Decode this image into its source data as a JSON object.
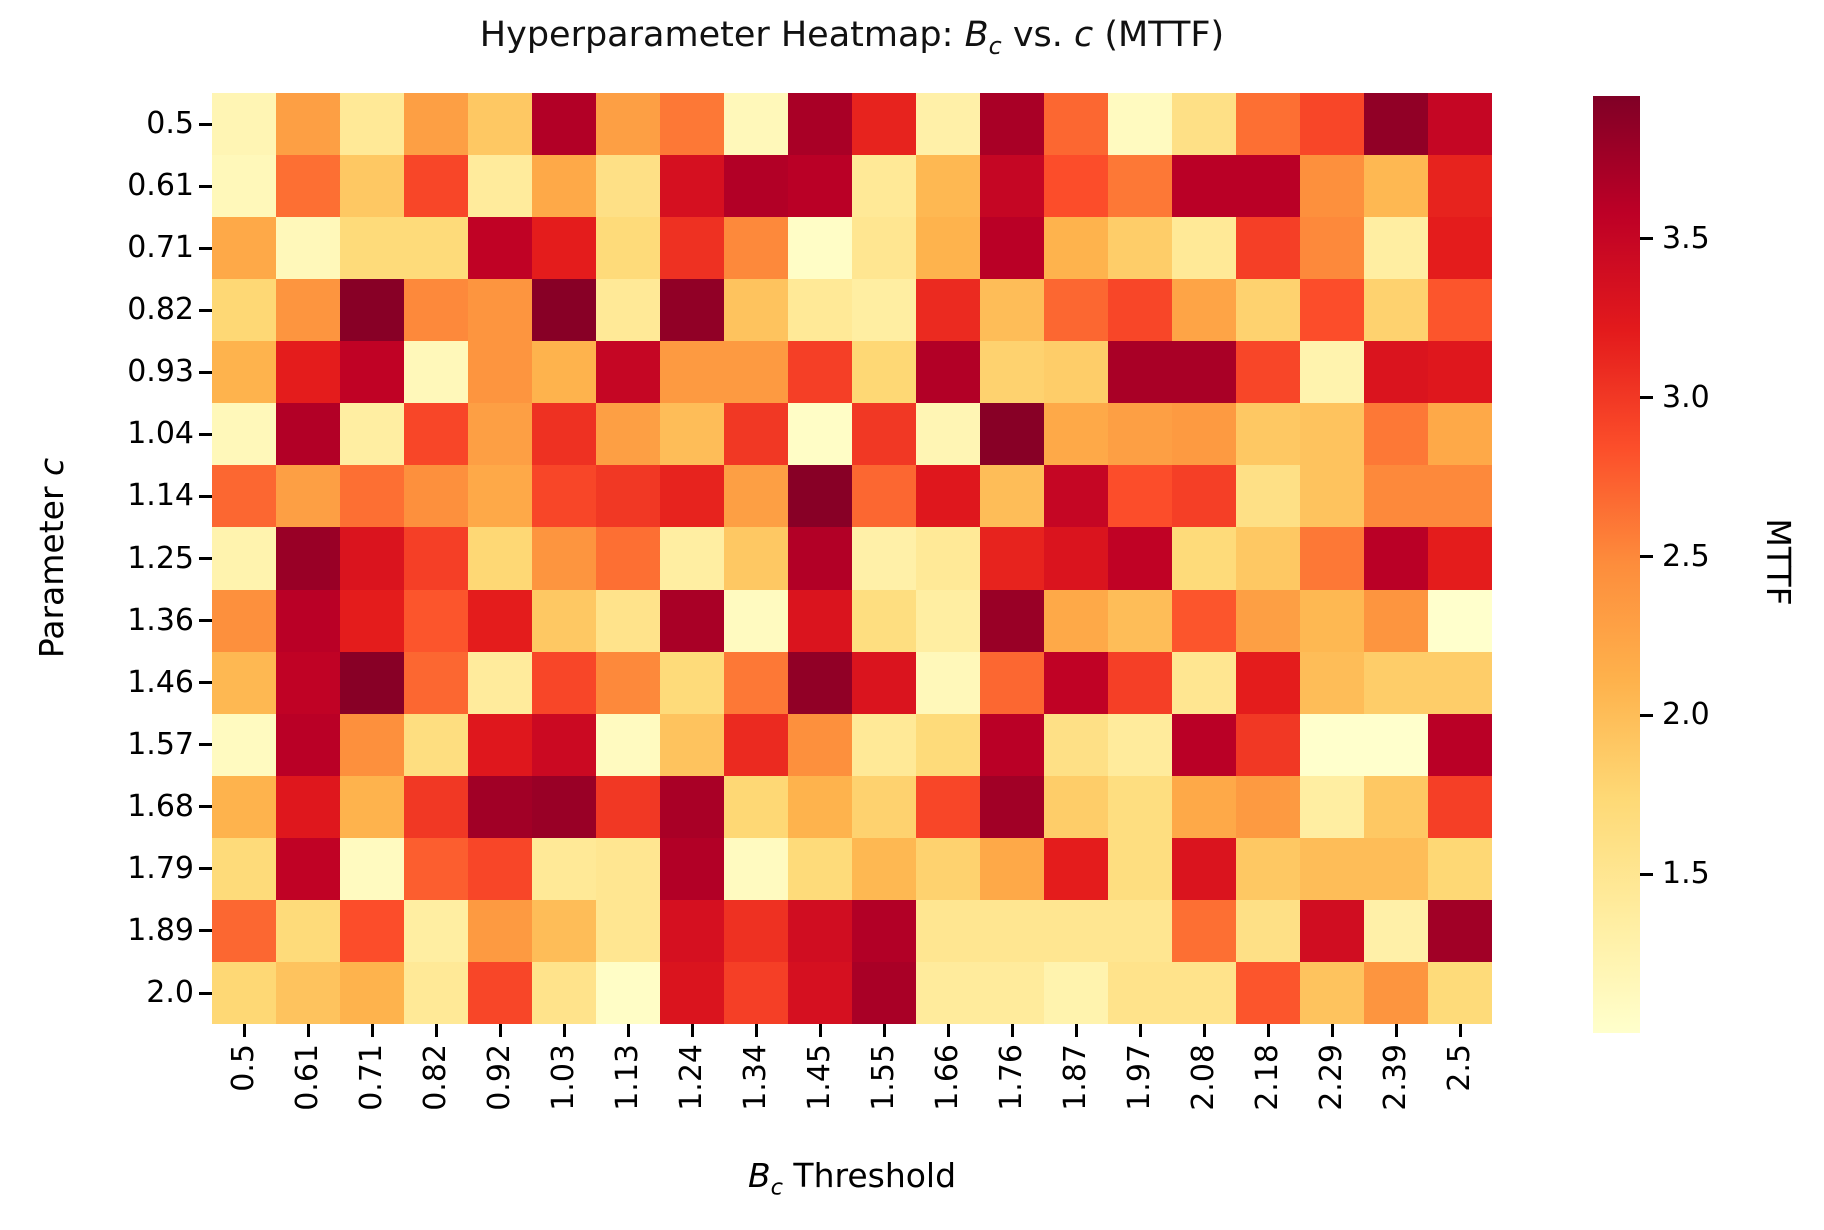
{
  "title": {
    "prefix": "Hyperparameter Heatmap: ",
    "var1": "B",
    "var1_sub": "c",
    "mid": " vs. ",
    "var2": "c",
    "suffix": " (MTTF)"
  },
  "x_axis": {
    "label_var": "B",
    "label_sub": "c",
    "label_rest": " Threshold"
  },
  "y_axis": {
    "label_prefix": "Parameter ",
    "label_var": "c"
  },
  "chart_data": {
    "type": "heatmap",
    "title": "Hyperparameter Heatmap: B_c vs. c (MTTF)",
    "xlabel": "B_c Threshold",
    "ylabel": "Parameter c",
    "x_categories": [
      "0.5",
      "0.61",
      "0.71",
      "0.82",
      "0.92",
      "1.03",
      "1.13",
      "1.24",
      "1.34",
      "1.45",
      "1.55",
      "1.66",
      "1.76",
      "1.87",
      "1.97",
      "2.08",
      "2.18",
      "2.29",
      "2.39",
      "2.5"
    ],
    "y_categories": [
      "0.5",
      "0.61",
      "0.71",
      "0.82",
      "0.93",
      "1.04",
      "1.14",
      "1.25",
      "1.36",
      "1.46",
      "1.57",
      "1.68",
      "1.79",
      "1.89",
      "2.0"
    ],
    "values": [
      [
        1.2,
        2.3,
        1.45,
        2.3,
        1.9,
        3.65,
        2.3,
        2.6,
        1.15,
        3.7,
        3.15,
        1.3,
        3.7,
        2.7,
        1.1,
        1.6,
        2.65,
        2.9,
        3.85,
        3.5
      ],
      [
        1.15,
        2.65,
        1.9,
        2.9,
        1.4,
        2.2,
        1.6,
        3.35,
        3.65,
        3.6,
        1.45,
        2.05,
        3.5,
        2.85,
        2.6,
        3.6,
        3.6,
        2.45,
        2.05,
        3.15
      ],
      [
        2.2,
        1.15,
        1.7,
        1.7,
        3.55,
        3.2,
        1.7,
        3.05,
        2.5,
        1.05,
        1.5,
        2.1,
        3.6,
        2.1,
        1.85,
        1.45,
        2.95,
        2.5,
        1.35,
        3.2
      ],
      [
        1.75,
        2.4,
        3.9,
        2.5,
        2.4,
        3.9,
        1.45,
        3.85,
        1.95,
        1.45,
        1.35,
        3.1,
        2.0,
        2.7,
        2.9,
        2.25,
        1.8,
        2.85,
        1.8,
        2.8
      ],
      [
        2.1,
        3.2,
        3.55,
        1.15,
        2.4,
        2.1,
        3.5,
        2.35,
        2.35,
        2.95,
        1.75,
        3.65,
        1.8,
        1.85,
        3.7,
        3.7,
        2.9,
        1.25,
        3.3,
        3.25
      ],
      [
        1.15,
        3.65,
        1.35,
        2.9,
        2.3,
        3.05,
        2.3,
        2.0,
        3.0,
        1.05,
        3.0,
        1.2,
        3.9,
        2.2,
        2.3,
        2.35,
        1.9,
        1.95,
        2.6,
        2.2
      ],
      [
        2.7,
        2.3,
        2.65,
        2.45,
        2.2,
        2.9,
        3.0,
        3.15,
        2.3,
        3.9,
        2.7,
        3.25,
        2.0,
        3.5,
        2.85,
        2.95,
        1.6,
        1.95,
        2.5,
        2.5
      ],
      [
        1.25,
        3.8,
        3.3,
        2.95,
        1.75,
        2.4,
        2.65,
        1.35,
        1.9,
        3.65,
        1.3,
        1.45,
        3.15,
        3.3,
        3.55,
        1.7,
        1.9,
        2.6,
        3.6,
        3.2
      ],
      [
        2.45,
        3.6,
        3.2,
        2.8,
        3.2,
        1.9,
        1.55,
        3.7,
        1.1,
        3.3,
        1.65,
        1.35,
        3.8,
        2.2,
        2.0,
        2.8,
        2.3,
        2.05,
        2.4,
        1.0
      ],
      [
        2.05,
        3.55,
        3.9,
        2.7,
        1.4,
        2.9,
        2.5,
        1.7,
        2.6,
        3.85,
        3.3,
        1.15,
        2.7,
        3.55,
        2.95,
        1.5,
        3.2,
        2.0,
        1.85,
        1.85
      ],
      [
        1.1,
        3.6,
        2.45,
        1.65,
        3.25,
        3.45,
        1.1,
        1.95,
        3.1,
        2.45,
        1.45,
        1.7,
        3.6,
        1.6,
        1.4,
        3.6,
        3.0,
        1.0,
        1.0,
        3.6
      ],
      [
        2.1,
        3.25,
        2.1,
        3.0,
        3.75,
        3.8,
        3.0,
        3.7,
        1.75,
        2.1,
        1.8,
        2.9,
        3.75,
        1.85,
        1.65,
        2.2,
        2.35,
        1.35,
        1.9,
        2.95
      ],
      [
        1.7,
        3.55,
        1.1,
        2.75,
        2.9,
        1.45,
        1.5,
        3.65,
        1.1,
        1.7,
        2.05,
        1.8,
        2.2,
        3.2,
        1.65,
        3.3,
        1.9,
        2.0,
        2.0,
        1.75
      ],
      [
        2.7,
        1.7,
        2.85,
        1.35,
        2.35,
        2.0,
        1.5,
        3.35,
        3.05,
        3.4,
        3.65,
        1.5,
        1.5,
        1.5,
        1.5,
        2.65,
        1.6,
        3.4,
        1.3,
        3.75
      ],
      [
        1.75,
        1.95,
        2.1,
        1.45,
        2.9,
        1.55,
        1.05,
        3.3,
        2.95,
        3.35,
        3.7,
        1.4,
        1.4,
        1.25,
        1.55,
        1.55,
        2.8,
        1.95,
        2.4,
        1.7
      ]
    ],
    "colormap": "YlOrRd",
    "colormap_stops": [
      "#ffffcc",
      "#ffeda0",
      "#fed976",
      "#feb24c",
      "#fd8d3c",
      "#fc4e2a",
      "#e31a1c",
      "#bd0026",
      "#800026"
    ],
    "vmin": 1.0,
    "vmax": 3.95,
    "colorbar": {
      "label": "MTTF",
      "ticks": [
        "1.5",
        "2.0",
        "2.5",
        "3.0",
        "3.5"
      ]
    },
    "grid": false,
    "legend_position": "colorbar-right"
  }
}
